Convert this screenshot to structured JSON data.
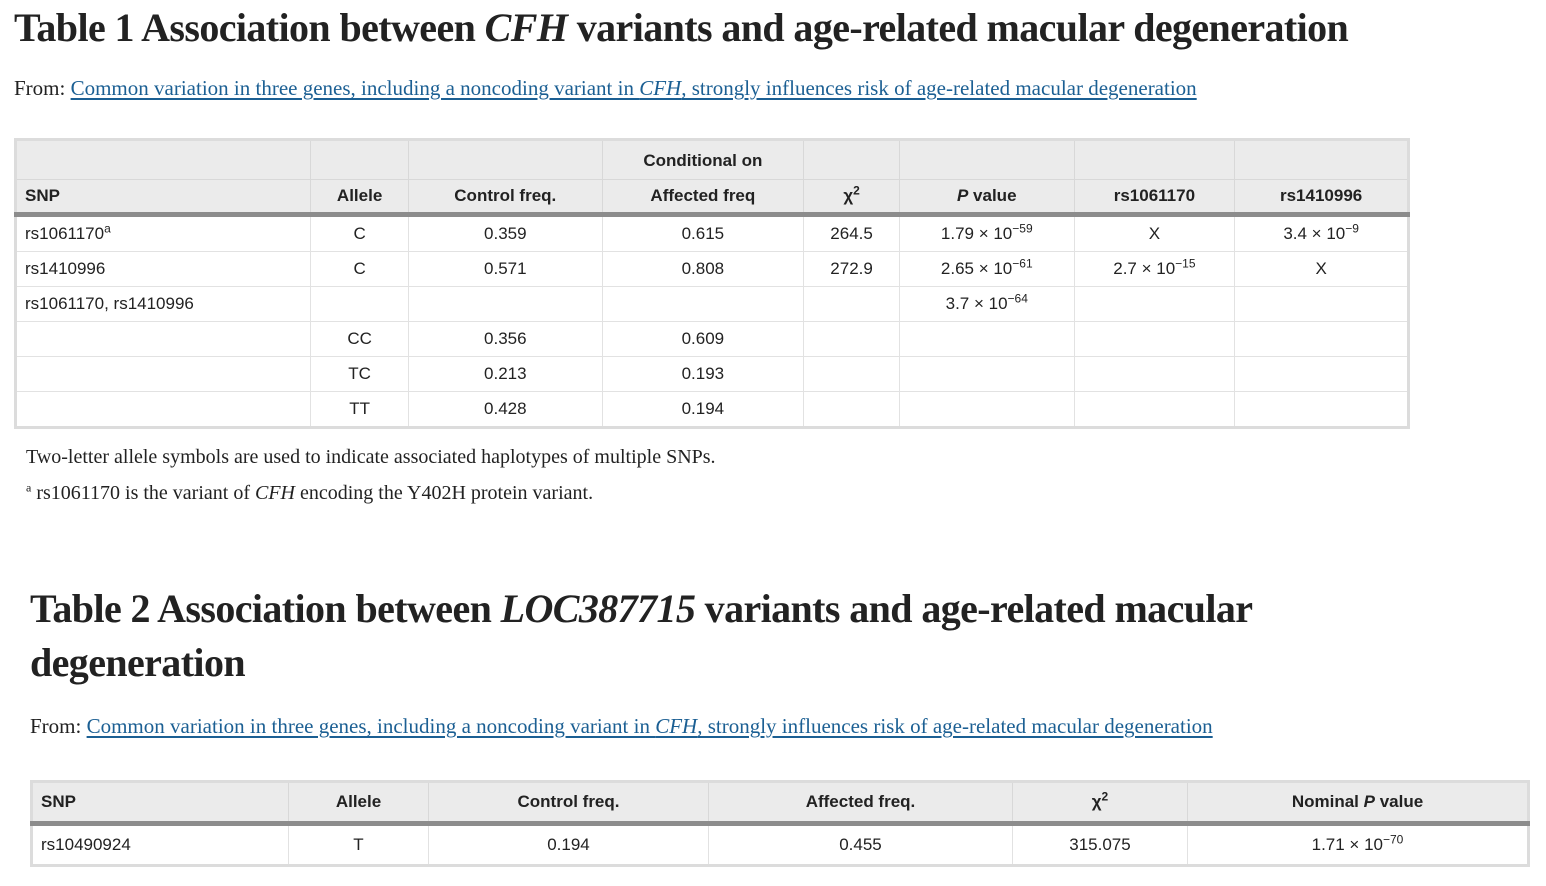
{
  "table1": {
    "title_prefix": "Table 1 Association between ",
    "title_gene": "CFH",
    "title_suffix": " variants and age-related macular degeneration",
    "from_label": "From:",
    "link_part1": "Common variation in three genes, including a noncoding variant in ",
    "link_gene": "CFH",
    "link_part2": ", strongly influences risk of age-related macular degeneration",
    "group_header": "Conditional on",
    "headers": {
      "snp": "SNP",
      "allele": "Allele",
      "control": "Control freq.",
      "affected": "Affected freq",
      "chi_base": "χ",
      "chi_sup": "2",
      "p_italic": "P",
      "p_rest": " value",
      "cond1": "rs1061170",
      "cond2": "rs1410996"
    },
    "rows": [
      {
        "snp": "rs1061170",
        "snp_sup": "a",
        "allele": "C",
        "control": "0.359",
        "affected": "0.615",
        "chi": "264.5",
        "p_base": "1.79 × 10",
        "p_exp": "−59",
        "c1_base": "X",
        "c1_exp": "",
        "c2_base": "3.4 × 10",
        "c2_exp": "−9"
      },
      {
        "snp": "rs1410996",
        "snp_sup": "",
        "allele": "C",
        "control": "0.571",
        "affected": "0.808",
        "chi": "272.9",
        "p_base": "2.65 × 10",
        "p_exp": "−61",
        "c1_base": "2.7 × 10",
        "c1_exp": "−15",
        "c2_base": "X",
        "c2_exp": ""
      },
      {
        "snp": "rs1061170, rs1410996",
        "snp_sup": "",
        "allele": "",
        "control": "",
        "affected": "",
        "chi": "",
        "p_base": "3.7 × 10",
        "p_exp": "−64",
        "c1_base": "",
        "c1_exp": "",
        "c2_base": "",
        "c2_exp": ""
      },
      {
        "snp": "",
        "snp_sup": "",
        "allele": "CC",
        "control": "0.356",
        "affected": "0.609",
        "chi": "",
        "p_base": "",
        "p_exp": "",
        "c1_base": "",
        "c1_exp": "",
        "c2_base": "",
        "c2_exp": ""
      },
      {
        "snp": "",
        "snp_sup": "",
        "allele": "TC",
        "control": "0.213",
        "affected": "0.193",
        "chi": "",
        "p_base": "",
        "p_exp": "",
        "c1_base": "",
        "c1_exp": "",
        "c2_base": "",
        "c2_exp": ""
      },
      {
        "snp": "",
        "snp_sup": "",
        "allele": "TT",
        "control": "0.428",
        "affected": "0.194",
        "chi": "",
        "p_base": "",
        "p_exp": "",
        "c1_base": "",
        "c1_exp": "",
        "c2_base": "",
        "c2_exp": ""
      }
    ],
    "footnote1": "Two-letter allele symbols are used to indicate associated haplotypes of multiple SNPs.",
    "footnote2_mark": "a",
    "footnote2_part1": " rs1061170 is the variant of ",
    "footnote2_gene": "CFH",
    "footnote2_part2": " encoding the Y402H protein variant."
  },
  "table2": {
    "title_prefix": "Table 2 Association between ",
    "title_gene": "LOC387715",
    "title_suffix": " variants and age-related macular degeneration",
    "from_label": "From:",
    "link_part1": "Common variation in three genes, including a noncoding variant in ",
    "link_gene": "CFH",
    "link_part2": ", strongly influences risk of age-related macular degeneration",
    "headers": {
      "snp": "SNP",
      "allele": "Allele",
      "control": "Control freq.",
      "affected": "Affected freq.",
      "chi_base": "χ",
      "chi_sup": "2",
      "nominal": "Nominal ",
      "p_italic": "P",
      "p_rest": " value"
    },
    "rows": [
      {
        "snp": "rs10490924",
        "allele": "T",
        "control": "0.194",
        "affected": "0.455",
        "chi": "315.075",
        "p_base": "1.71 × 10",
        "p_exp": "−70"
      }
    ]
  }
}
